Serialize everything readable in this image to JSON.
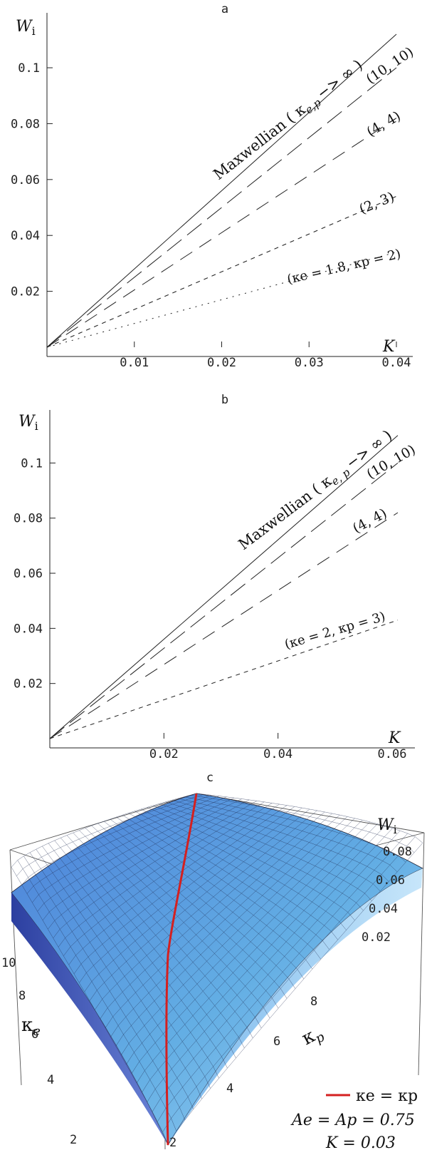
{
  "panels": {
    "a": {
      "title": "a",
      "ylabel": "W",
      "ylabel_sub": "i",
      "xlabel": "K",
      "x_ticks": [
        "0.01",
        "0.02",
        "0.03",
        "0.04"
      ],
      "y_ticks": [
        "0.02",
        "0.04",
        "0.06",
        "0.08",
        "0.1"
      ],
      "curve_labels": {
        "maxwellian": "Maxwellian ( κ",
        "maxwellian_sub": "e,p",
        "maxwellian_tail": "−> ∞ )",
        "c1010": "(10, 10)",
        "c44": "(4, 4)",
        "c23": "(2, 3)",
        "c182": "(κe = 1.8, κp = 2)"
      }
    },
    "b": {
      "title": "b",
      "ylabel": "W",
      "ylabel_sub": "i",
      "xlabel": "K",
      "x_ticks": [
        "0.02",
        "0.04",
        "0.06"
      ],
      "y_ticks": [
        "0.02",
        "0.04",
        "0.06",
        "0.08",
        "0.1"
      ],
      "curve_labels": {
        "maxwellian": "Maxwellian ( κ",
        "maxwellian_sub": "e, p",
        "maxwellian_tail": "−> ∞ )",
        "c1010": "(10, 10)",
        "c44": "(4, 4)",
        "c23": "(κe = 2, κp = 3)"
      }
    },
    "c": {
      "title": "c",
      "zlabel": "W",
      "zlabel_sub": "i",
      "z_ticks": [
        "0.08",
        "0.06",
        "0.04",
        "0.02"
      ],
      "ke_label": "κ",
      "ke_sub": "e",
      "kp_label": "κ",
      "kp_sub": "p",
      "ke_ticks": [
        "10",
        "8",
        "6",
        "4",
        "2"
      ],
      "kp_ticks": [
        "2",
        "4",
        "6",
        "8"
      ],
      "legend_line": "κe = κp",
      "param_A": "Ae = Ap = 0.75",
      "param_K": "K = 0.03",
      "surface_color": "#5aa2dc",
      "diag_color": "#d42020"
    }
  },
  "chart_data": [
    {
      "type": "line",
      "title": "a",
      "xlabel": "K",
      "ylabel": "Wi",
      "xlim": [
        0,
        0.04
      ],
      "ylim": [
        0,
        0.112
      ],
      "series": [
        {
          "name": "Maxwellian (κe,p −> ∞)",
          "x": [
            0,
            0.04
          ],
          "y": [
            0,
            0.112
          ]
        },
        {
          "name": "(10, 10)",
          "x": [
            0,
            0.04
          ],
          "y": [
            0,
            0.1
          ]
        },
        {
          "name": "(4, 4)",
          "x": [
            0,
            0.04
          ],
          "y": [
            0,
            0.082
          ]
        },
        {
          "name": "(2, 3)",
          "x": [
            0,
            0.04
          ],
          "y": [
            0,
            0.054
          ]
        },
        {
          "name": "(κe = 1.8, κp = 2)",
          "x": [
            0,
            0.04
          ],
          "y": [
            0,
            0.034
          ]
        }
      ]
    },
    {
      "type": "line",
      "title": "b",
      "xlabel": "K",
      "ylabel": "Wi",
      "xlim": [
        0,
        0.062
      ],
      "ylim": [
        0,
        0.112
      ],
      "series": [
        {
          "name": "Maxwellian (κe,p −> ∞)",
          "x": [
            0,
            0.061
          ],
          "y": [
            0,
            0.11
          ]
        },
        {
          "name": "(10, 10)",
          "x": [
            0,
            0.061
          ],
          "y": [
            0,
            0.1
          ]
        },
        {
          "name": "(4, 4)",
          "x": [
            0,
            0.061
          ],
          "y": [
            0,
            0.082
          ]
        },
        {
          "name": "(κe = 2, κp = 3)",
          "x": [
            0,
            0.061
          ],
          "y": [
            0,
            0.043
          ]
        }
      ]
    },
    {
      "type": "surface",
      "title": "c",
      "xlabel": "κp",
      "ylabel": "κe",
      "zlabel": "Wi",
      "xlim": [
        2,
        10
      ],
      "ylim": [
        2,
        10
      ],
      "zlim": [
        0.005,
        0.085
      ],
      "params": {
        "Ae": 0.75,
        "Ap": 0.75,
        "K": 0.03
      },
      "series": [
        {
          "name": "κe = κp",
          "kappa": [
            2,
            4,
            6,
            8,
            10
          ],
          "Wi": [
            0.005,
            0.06,
            0.073,
            0.079,
            0.083
          ]
        }
      ]
    }
  ]
}
